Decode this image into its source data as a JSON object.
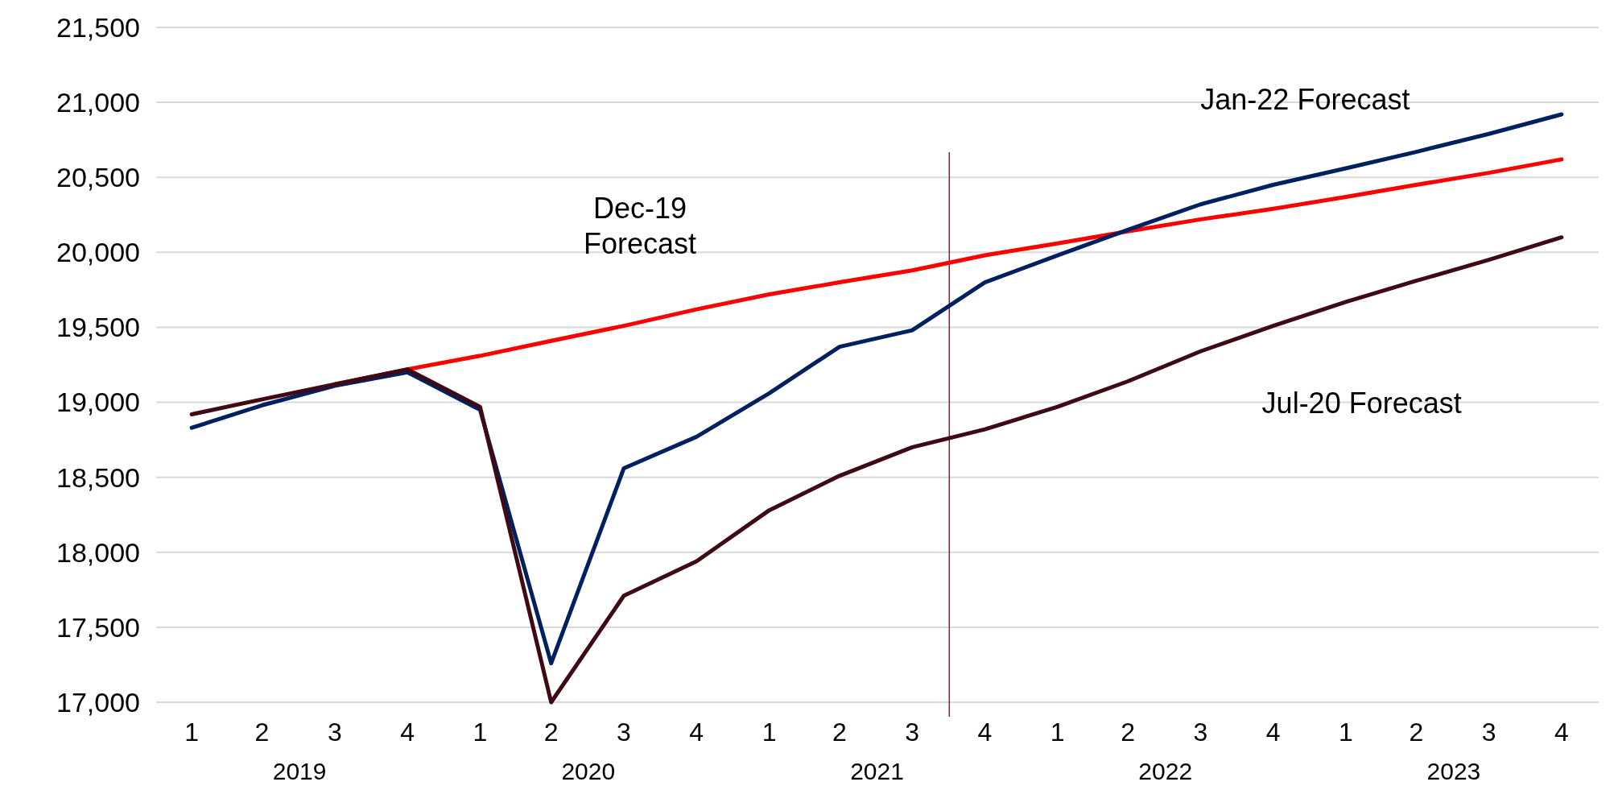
{
  "chart_data": {
    "type": "line",
    "x": [
      "2019-02-15",
      "2019-05-15",
      "2019-08-15",
      "2019-11-15",
      "2020-02-15",
      "2020-05-15",
      "2020-08-15",
      "2020-11-15",
      "2021-02-15",
      "2021-05-15",
      "2021-08-15",
      "2021-11-15",
      "2022-02-15",
      "2022-05-15",
      "2022-08-15",
      "2022-11-15",
      "2023-02-15",
      "2023-05-15",
      "2023-08-15",
      "2023-11-15"
    ],
    "xlim": [
      "2019-01-01",
      "2024-01-01"
    ],
    "xticks": [
      {
        "value": "2019-02-15",
        "label": "1"
      },
      {
        "value": "2019-05-15",
        "label": "2"
      },
      {
        "value": "2019-08-15",
        "label": "3"
      },
      {
        "value": "2019-11-15",
        "label": "4"
      },
      {
        "value": "2020-02-15",
        "label": "1"
      },
      {
        "value": "2020-05-15",
        "label": "2"
      },
      {
        "value": "2020-08-15",
        "label": "3"
      },
      {
        "value": "2020-11-15",
        "label": "4"
      },
      {
        "value": "2021-02-15",
        "label": "1"
      },
      {
        "value": "2021-05-15",
        "label": "2"
      },
      {
        "value": "2021-08-15",
        "label": "3"
      },
      {
        "value": "2021-11-15",
        "label": "4"
      },
      {
        "value": "2022-02-15",
        "label": "1"
      },
      {
        "value": "2022-05-15",
        "label": "2"
      },
      {
        "value": "2022-08-15",
        "label": "3"
      },
      {
        "value": "2022-11-15",
        "label": "4"
      },
      {
        "value": "2023-02-15",
        "label": "1"
      },
      {
        "value": "2023-05-15",
        "label": "2"
      },
      {
        "value": "2023-08-15",
        "label": "3"
      },
      {
        "value": "2023-11-15",
        "label": "4"
      }
    ],
    "ylim": [
      17000,
      21500
    ],
    "yticks": [
      {
        "value": 17000,
        "label": "17,000"
      },
      {
        "value": 17500,
        "label": "17,500"
      },
      {
        "value": 18000,
        "label": "18,000"
      },
      {
        "value": 18500,
        "label": "18,500"
      },
      {
        "value": 19000,
        "label": "19,000"
      },
      {
        "value": 19500,
        "label": "19,500"
      },
      {
        "value": 20000,
        "label": "20,000"
      },
      {
        "value": 20500,
        "label": "20,500"
      },
      {
        "value": 21000,
        "label": "21,000"
      },
      {
        "value": 21500,
        "label": "21,500"
      }
    ],
    "grid": "y",
    "marker": "none",
    "line_style": "solid",
    "series": [
      {
        "name": "Dec-19 Forecast",
        "color": "#ff0000",
        "values": [
          null,
          null,
          19120,
          19220,
          19310,
          19410,
          19510,
          19620,
          19720,
          19800,
          19880,
          19980,
          20060,
          20140,
          20220,
          20290,
          20370,
          20450,
          20530,
          20620
        ]
      },
      {
        "name": "Jan-22 Forecast",
        "color": "#002060",
        "values": [
          18830,
          18980,
          19110,
          19200,
          18950,
          17260,
          18560,
          18770,
          19060,
          19370,
          19480,
          19800,
          19980,
          20150,
          20320,
          20450,
          20560,
          20670,
          20790,
          20920
        ]
      },
      {
        "name": "Jul-20 Forecast",
        "color": "#3f0a14",
        "values": [
          18920,
          19020,
          19120,
          19220,
          18970,
          17000,
          17710,
          17940,
          18280,
          18510,
          18700,
          18820,
          18970,
          19140,
          19340,
          19510,
          19670,
          19810,
          19950,
          20100
        ]
      }
    ],
    "ref_lines": [
      {
        "axis": "x",
        "value": "2021-10-01",
        "color": "#7f1f2f"
      }
    ],
    "annotations": [
      "2019",
      "2020",
      "2021",
      "2022",
      "2023"
    ]
  }
}
